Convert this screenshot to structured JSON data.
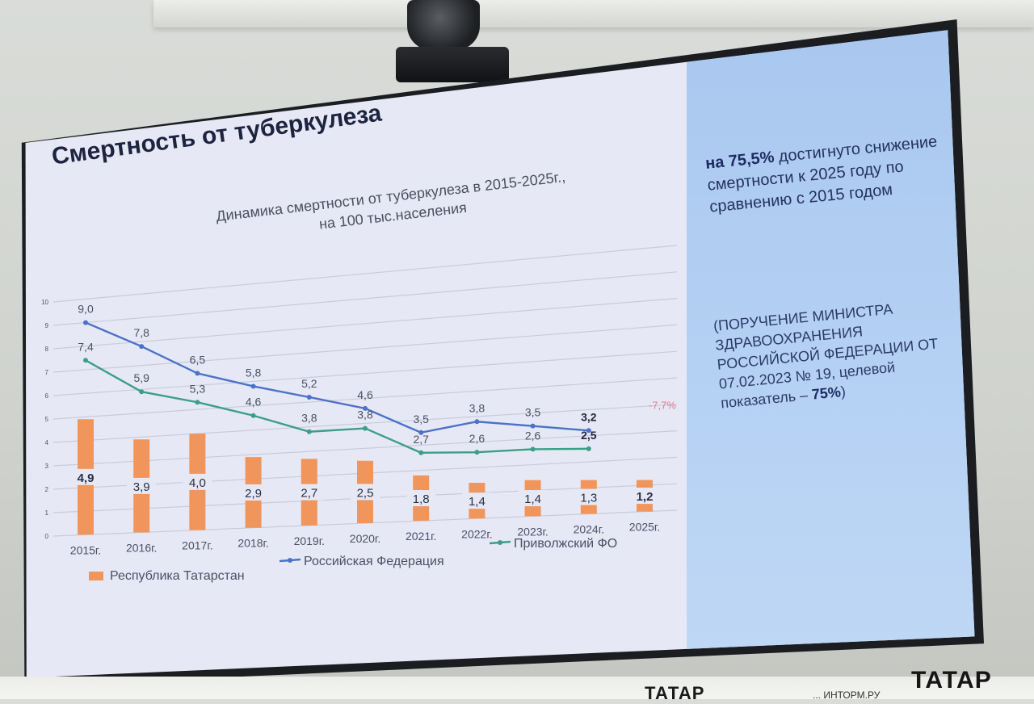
{
  "slide": {
    "title": "Смертность от туберкулеза",
    "side_highlight_bold": "на 75,5%",
    "side_highlight_text": " достигнуто снижение смертности к 2025 году по сравнению с 2015 годом",
    "side_note_text": "(ПОРУЧЕНИЕ МИНИСТРА ЗДРАВООХРАНЕНИЯ РОССИЙСКОЙ ФЕДЕРАЦИИ ОТ 07.02.2023 № 19, целевой показатель – ",
    "side_note_bold": "75%",
    "side_note_end": ")"
  },
  "chart_data": {
    "type": "bar",
    "title_line1": "Динамика смертности от туберкулеза в 2015-2025г.,",
    "title_line2": "на 100 тыс.населения",
    "categories": [
      "2015г.",
      "2016г.",
      "2017г.",
      "2018г.",
      "2019г.",
      "2020г.",
      "2021г.",
      "2022г.",
      "2023г.",
      "2024г.",
      "2025г."
    ],
    "ylim": [
      0,
      10
    ],
    "yticks": [
      "0",
      "1",
      "2",
      "3",
      "4",
      "5",
      "6",
      "7",
      "8",
      "9",
      "10"
    ],
    "grid": true,
    "legend_position": "bottom",
    "annotation": "-7,7%",
    "series": [
      {
        "name": "Республика Татарстан",
        "kind": "bar",
        "color": "#f0955b",
        "values": [
          4.9,
          3.9,
          4.0,
          2.9,
          2.7,
          2.5,
          1.8,
          1.4,
          1.4,
          1.3,
          1.2
        ],
        "labels": [
          "4,9",
          "3,9",
          "4,0",
          "2,9",
          "2,7",
          "2,5",
          "1,8",
          "1,4",
          "1,4",
          "1,3",
          "1,2"
        ]
      },
      {
        "name": "Российская Федерация",
        "kind": "line",
        "color": "#4a72c9",
        "values": [
          9.0,
          7.8,
          6.5,
          5.8,
          5.2,
          4.6,
          3.5,
          3.8,
          3.5,
          3.2,
          null
        ],
        "labels": [
          "9,0",
          "7,8",
          "6,5",
          "5,8",
          "5,2",
          "4,6",
          "3,5",
          "3,8",
          "3,5",
          "3,2",
          ""
        ]
      },
      {
        "name": "Приволжский ФО",
        "kind": "line",
        "color": "#3b9f88",
        "values": [
          7.4,
          5.9,
          5.3,
          4.6,
          3.8,
          3.8,
          2.7,
          2.6,
          2.6,
          2.5,
          null
        ],
        "labels": [
          "7,4",
          "5,9",
          "5,3",
          "4,6",
          "3,8",
          "3,8",
          "2,7",
          "2,6",
          "2,6",
          "2,5",
          ""
        ]
      }
    ]
  },
  "overlay": {
    "logo": "ТАТАР",
    "logo_small": "ТАТАР",
    "logo_url_fragment": "... ИНТОРМ.РУ"
  },
  "colors": {
    "screen_bg": "#e7e8f5",
    "side_panel": "#b4d0f3",
    "title": "#1d2440",
    "annotation": "#e07b8a"
  }
}
